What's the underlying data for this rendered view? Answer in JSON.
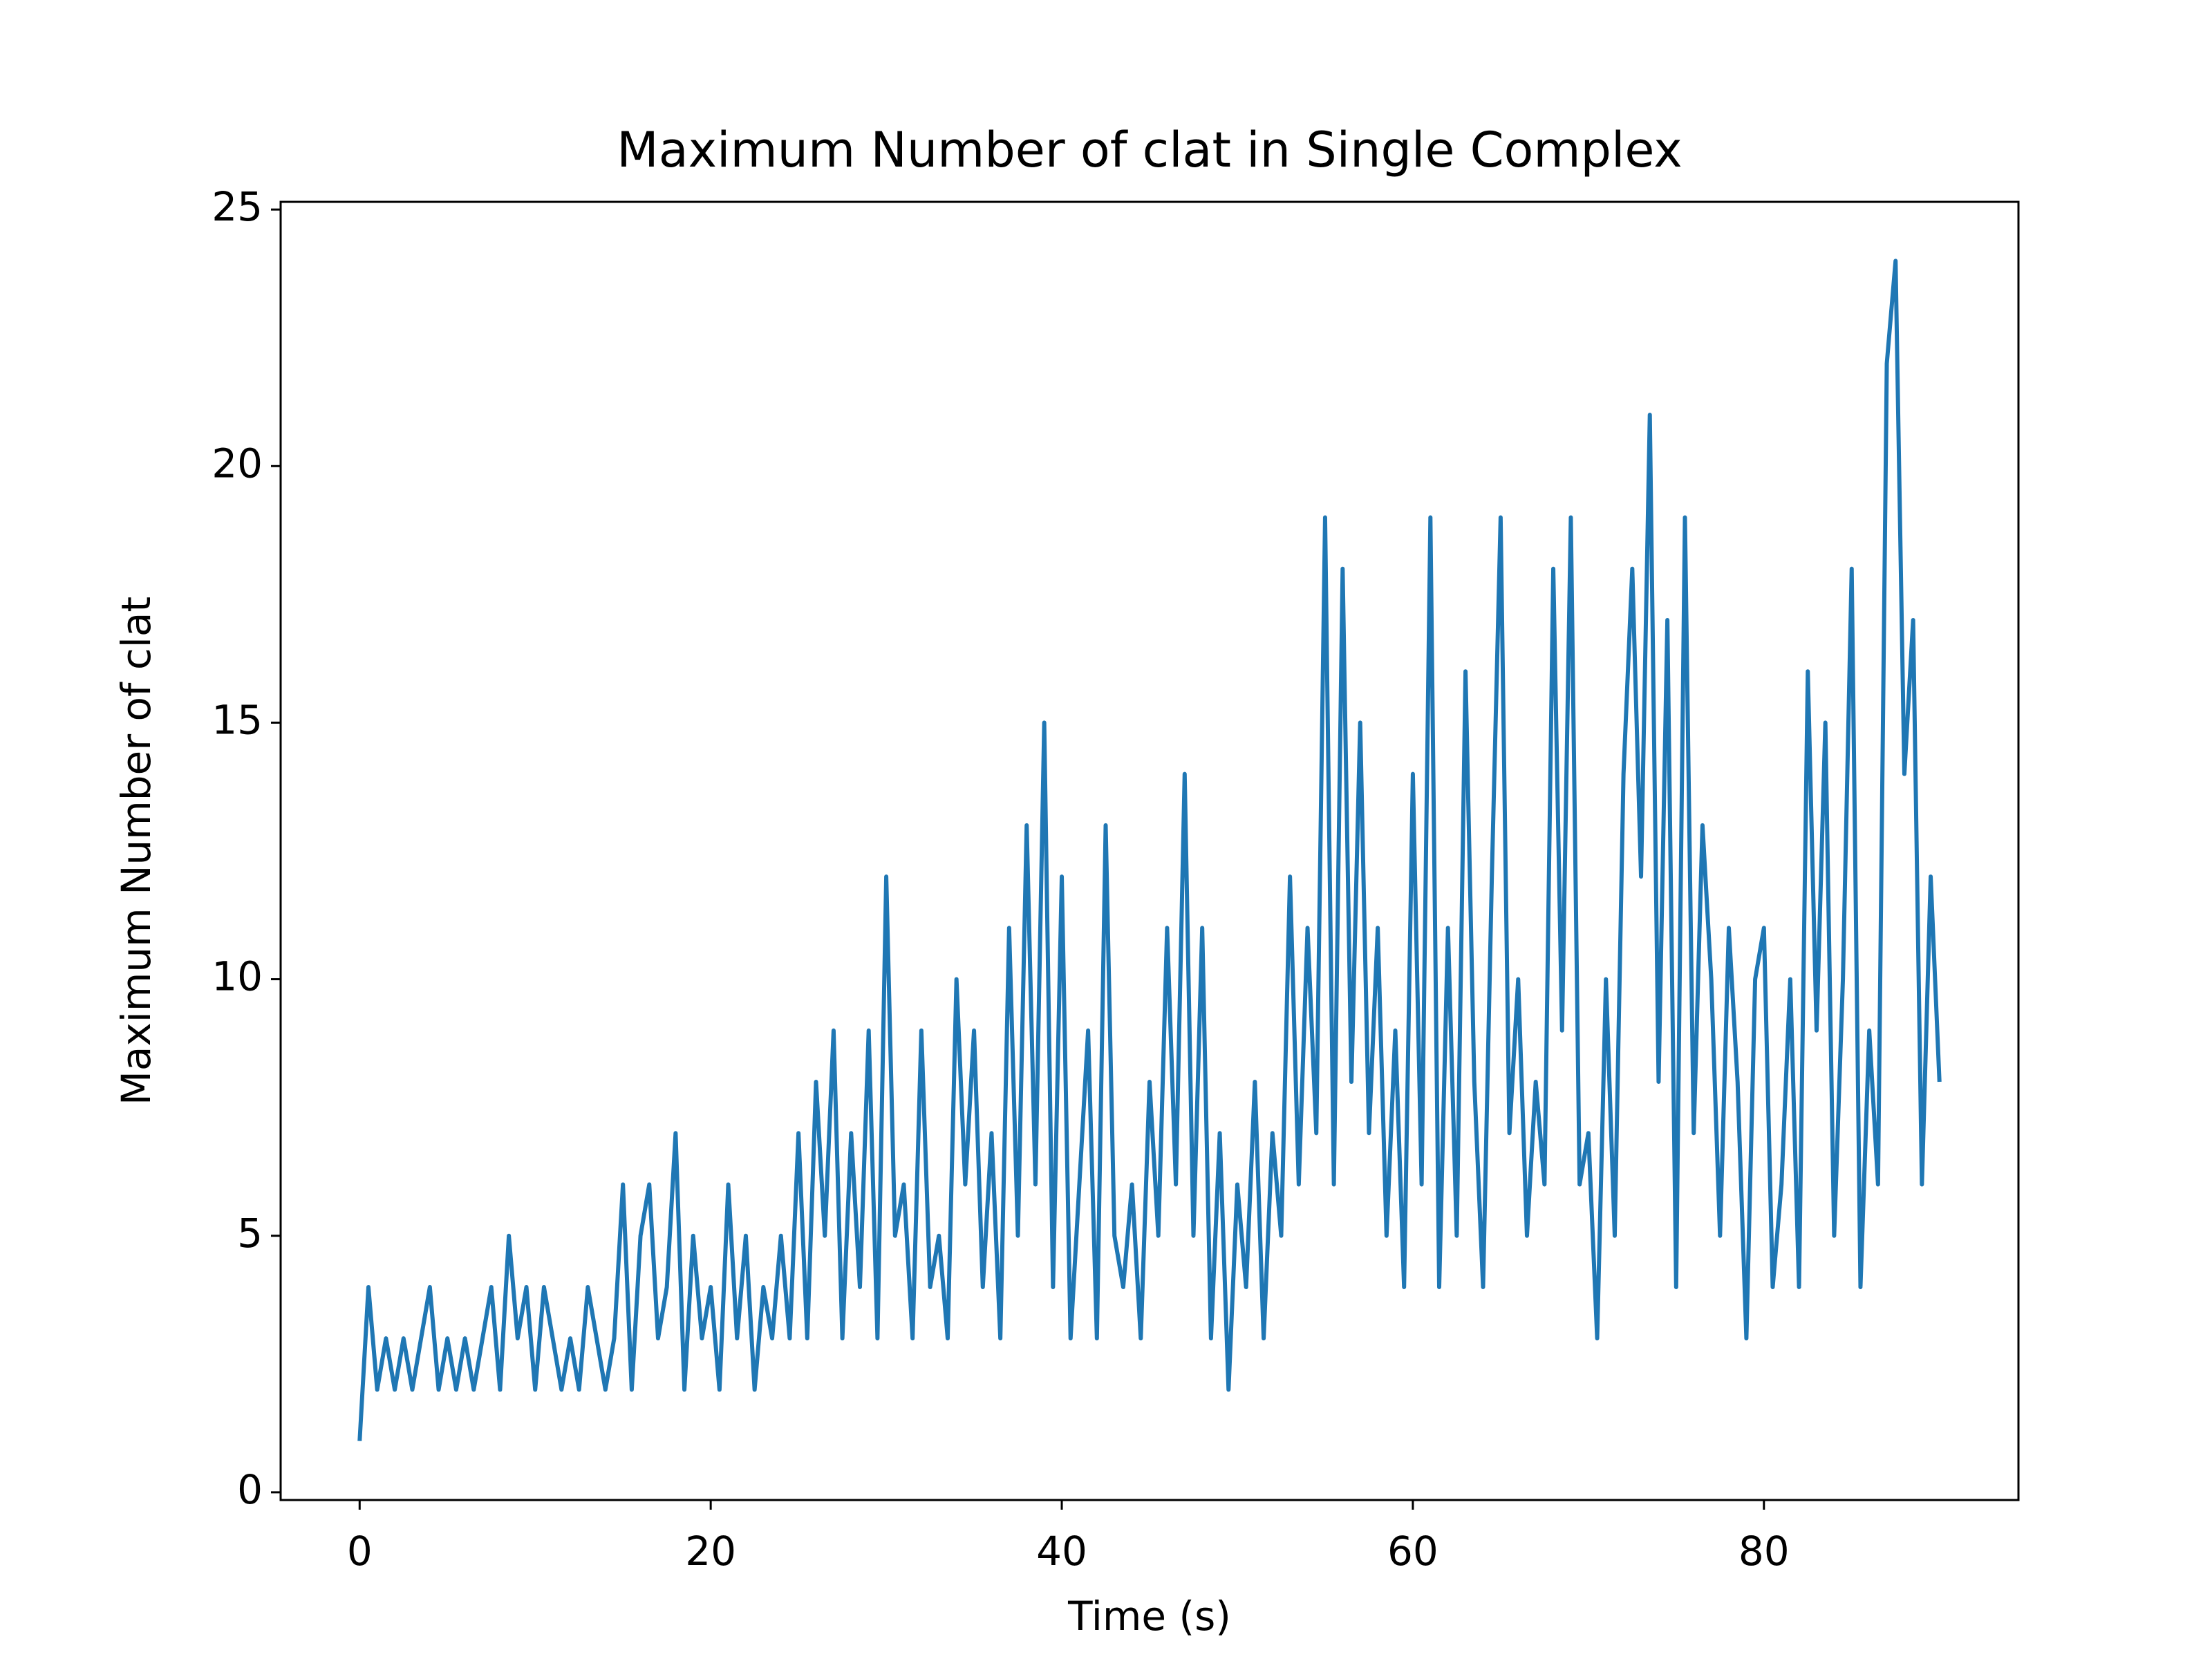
{
  "chart_data": {
    "type": "line",
    "title": "Maximum Number of clat in Single Complex",
    "x_label": "Time (s)",
    "y_label": "Maximum Number of clat",
    "x": [
      0,
      0.5,
      1,
      1.5,
      2,
      2.5,
      3,
      3.5,
      4,
      4.5,
      5,
      5.5,
      6,
      6.5,
      7,
      7.5,
      8,
      8.5,
      9,
      9.5,
      10,
      10.5,
      11,
      11.5,
      12,
      12.5,
      13,
      13.5,
      14,
      14.5,
      15,
      15.5,
      16,
      16.5,
      17,
      17.5,
      18,
      18.5,
      19,
      19.5,
      20,
      20.5,
      21,
      21.5,
      22,
      22.5,
      23,
      23.5,
      24,
      24.5,
      25,
      25.5,
      26,
      26.5,
      27,
      27.5,
      28,
      28.5,
      29,
      29.5,
      30,
      30.5,
      31,
      31.5,
      32,
      32.5,
      33,
      33.5,
      34,
      34.5,
      35,
      35.5,
      36,
      36.5,
      37,
      37.5,
      38,
      38.5,
      39,
      39.5,
      40,
      40.5,
      41,
      41.5,
      42,
      42.5,
      43,
      43.5,
      44,
      44.5,
      45,
      45.5,
      46,
      46.5,
      47,
      47.5,
      48,
      48.5,
      49,
      49.5,
      50,
      50.5,
      51,
      51.5,
      52,
      52.5,
      53,
      53.5,
      54,
      54.5,
      55,
      55.5,
      56,
      56.5,
      57,
      57.5,
      58,
      58.5,
      59,
      59.5,
      60,
      60.5,
      61,
      61.5,
      62,
      62.5,
      63,
      63.5,
      64,
      64.5,
      65,
      65.5,
      66,
      66.5,
      67,
      67.5,
      68,
      68.5,
      69,
      69.5,
      70,
      70.5,
      71,
      71.5,
      72,
      72.5,
      73,
      73.5,
      74,
      74.5,
      75,
      75.5,
      76,
      76.5,
      77,
      77.5,
      78,
      78.5,
      79,
      79.5,
      80,
      80.5,
      81,
      81.5,
      82,
      82.5,
      83,
      83.5,
      84,
      84.5,
      85,
      85.5,
      86,
      86.5,
      87,
      87.5,
      88,
      88.5,
      89,
      89.5,
      90
    ],
    "series": [
      {
        "color": "#1f77b4",
        "values": [
          1,
          4,
          2,
          3,
          2,
          3,
          2,
          3,
          4,
          2,
          3,
          2,
          3,
          2,
          3,
          4,
          2,
          5,
          3,
          4,
          2,
          4,
          3,
          2,
          3,
          2,
          4,
          3,
          2,
          3,
          6,
          2,
          5,
          6,
          3,
          4,
          7,
          2,
          5,
          3,
          4,
          2,
          6,
          3,
          5,
          2,
          4,
          3,
          5,
          3,
          7,
          3,
          8,
          5,
          9,
          3,
          7,
          4,
          9,
          3,
          12,
          5,
          6,
          3,
          9,
          4,
          5,
          3,
          10,
          6,
          9,
          4,
          7,
          3,
          11,
          5,
          13,
          6,
          15,
          4,
          12,
          3,
          6,
          9,
          3,
          13,
          5,
          4,
          6,
          3,
          8,
          5,
          11,
          6,
          14,
          5,
          11,
          3,
          7,
          2,
          6,
          4,
          8,
          3,
          7,
          5,
          12,
          6,
          11,
          7,
          19,
          6,
          18,
          8,
          15,
          7,
          11,
          5,
          9,
          4,
          14,
          6,
          19,
          4,
          11,
          5,
          16,
          8,
          4,
          12,
          19,
          7,
          10,
          5,
          8,
          6,
          18,
          9,
          19,
          6,
          7,
          3,
          10,
          5,
          14,
          18,
          12,
          21,
          8,
          17,
          4,
          19,
          7,
          13,
          10,
          5,
          11,
          8,
          3,
          10,
          11,
          4,
          6,
          10,
          4,
          16,
          9,
          15,
          5,
          10,
          18,
          4,
          9,
          6,
          22,
          24,
          14,
          17,
          6,
          12,
          8
        ]
      }
    ],
    "xlim": [
      -4.5,
      94.5
    ],
    "ylim": [
      -0.15,
      25.15
    ],
    "xticks": [
      0,
      20,
      40,
      60,
      80
    ],
    "yticks": [
      0,
      5,
      10,
      15,
      20,
      25
    ]
  }
}
